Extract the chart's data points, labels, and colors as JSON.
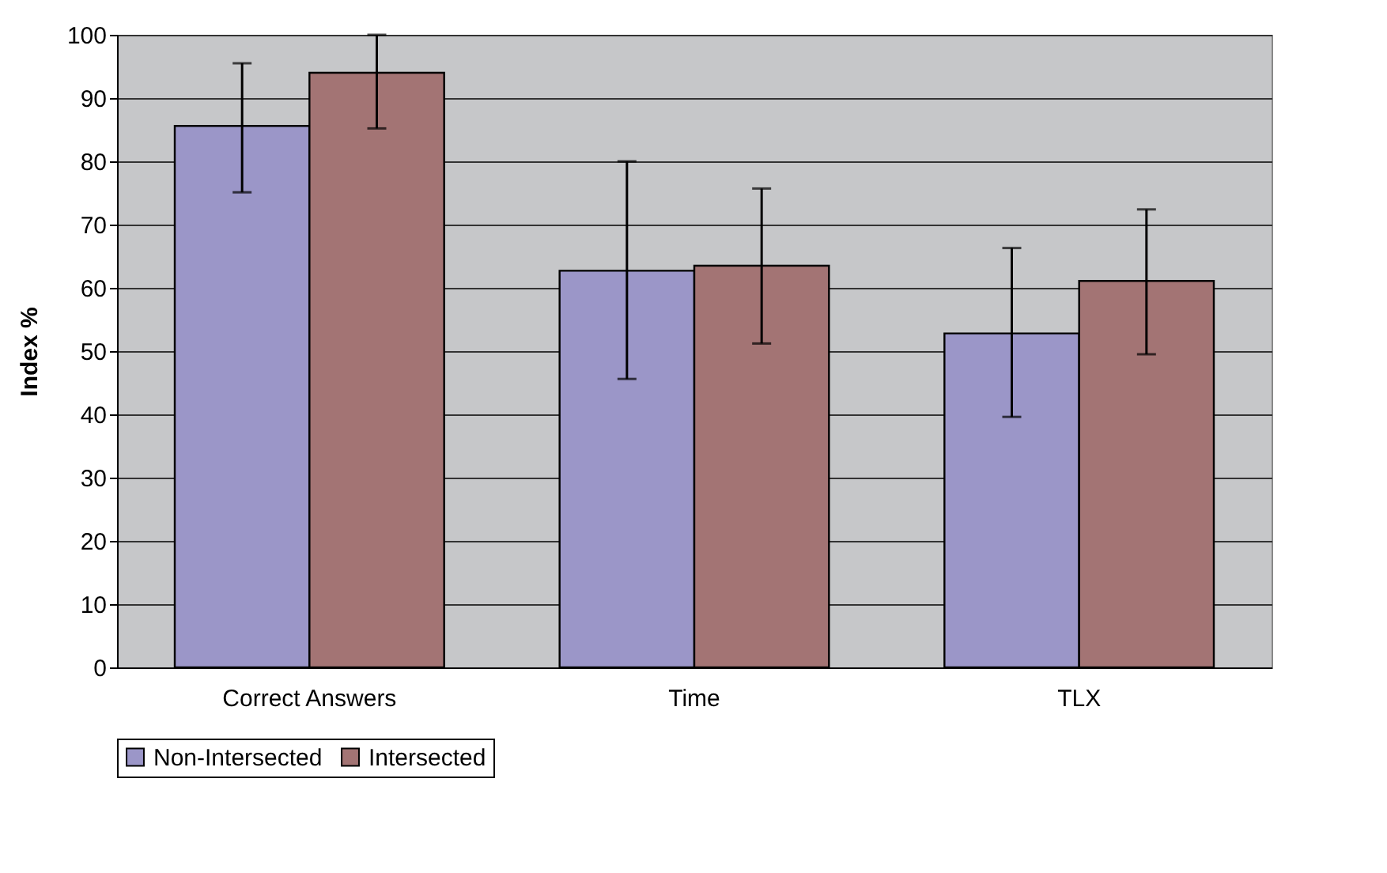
{
  "chart_data": {
    "type": "bar",
    "ylabel": "Index %",
    "categories": [
      "Correct Answers",
      "Time",
      "TLX"
    ],
    "series": [
      {
        "name": "Non-Intersected",
        "color": "#9b96c8",
        "values": [
          85.6,
          62.7,
          52.8
        ],
        "errors": [
          [
            75.1,
            95.5
          ],
          [
            45.6,
            80.0
          ],
          [
            39.6,
            66.3
          ]
        ]
      },
      {
        "name": "Intersected",
        "color": "#a37474",
        "values": [
          94.0,
          63.5,
          61.1
        ],
        "errors": [
          [
            85.2,
            100
          ],
          [
            51.2,
            75.7
          ],
          [
            49.5,
            72.4
          ]
        ]
      }
    ],
    "ylim": [
      0,
      100
    ],
    "yticks": [
      0,
      10,
      20,
      30,
      40,
      50,
      60,
      70,
      80,
      90,
      100
    ],
    "grid": "y",
    "legend": "bottom"
  }
}
